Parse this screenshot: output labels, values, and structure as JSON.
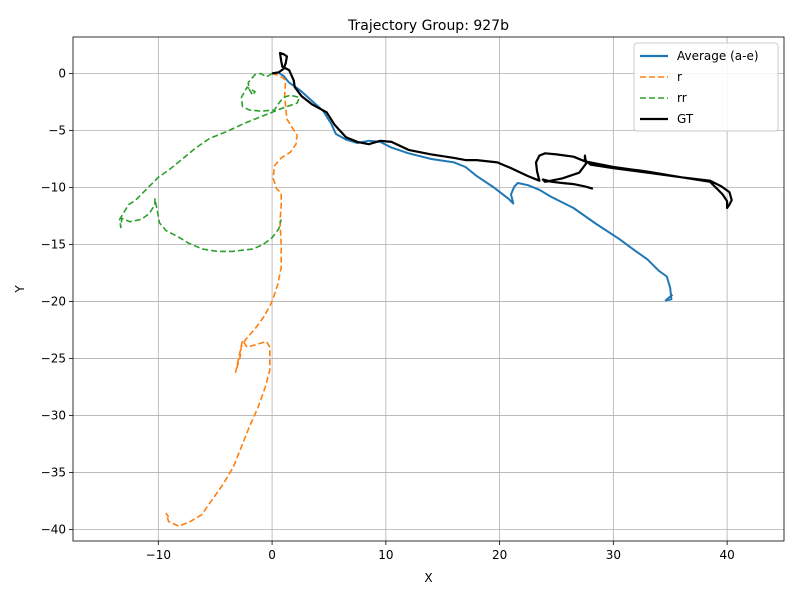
{
  "chart_data": {
    "type": "line",
    "title": "Trajectory Group: 927b",
    "xlabel": "X",
    "ylabel": "Y",
    "xlim": [
      -17.5,
      45
    ],
    "ylim": [
      -41,
      3.2
    ],
    "xticks": [
      -10,
      0,
      10,
      20,
      30,
      40
    ],
    "yticks": [
      0,
      -5,
      -10,
      -15,
      -20,
      -25,
      -30,
      -35,
      -40
    ],
    "grid": true,
    "legend_position": "top-right",
    "series": [
      {
        "name": "Average (a-e)",
        "color": "#1f77b4",
        "style": "solid",
        "points": [
          [
            0,
            0
          ],
          [
            0.5,
            0.1
          ],
          [
            1,
            -0.2
          ],
          [
            1.5,
            -0.8
          ],
          [
            2.5,
            -1.5
          ],
          [
            3.5,
            -2.4
          ],
          [
            4.5,
            -3.3
          ],
          [
            5.2,
            -4.4
          ],
          [
            5.6,
            -5.3
          ],
          [
            6.5,
            -5.8
          ],
          [
            7.5,
            -6.1
          ],
          [
            8.5,
            -5.9
          ],
          [
            9.5,
            -6.0
          ],
          [
            10.5,
            -6.5
          ],
          [
            12,
            -7
          ],
          [
            14,
            -7.5
          ],
          [
            16,
            -7.8
          ],
          [
            17,
            -8.2
          ],
          [
            18,
            -9
          ],
          [
            19.5,
            -10
          ],
          [
            20.8,
            -11
          ],
          [
            21.2,
            -11.4
          ],
          [
            21,
            -10.6
          ],
          [
            21.3,
            -9.9
          ],
          [
            21.6,
            -9.6
          ],
          [
            22.5,
            -9.8
          ],
          [
            23.5,
            -10.2
          ],
          [
            24.5,
            -10.8
          ],
          [
            26.5,
            -11.8
          ],
          [
            28.5,
            -13.2
          ],
          [
            30.5,
            -14.5
          ],
          [
            32,
            -15.6
          ],
          [
            33,
            -16.3
          ],
          [
            34,
            -17.3
          ],
          [
            34.7,
            -17.8
          ],
          [
            35,
            -18.8
          ],
          [
            35.1,
            -19.8
          ],
          [
            34.6,
            -19.9
          ],
          [
            35.2,
            -19.4
          ]
        ]
      },
      {
        "name": "r",
        "color": "#ff7f0e",
        "style": "dashed",
        "points": [
          [
            0,
            0
          ],
          [
            0.7,
            -0.2
          ],
          [
            1.2,
            -0.6
          ],
          [
            1.1,
            -2
          ],
          [
            1.3,
            -4
          ],
          [
            1.8,
            -4.8
          ],
          [
            2.2,
            -5.4
          ],
          [
            2.1,
            -6.2
          ],
          [
            1.6,
            -6.9
          ],
          [
            0.8,
            -7.4
          ],
          [
            0.2,
            -8.1
          ],
          [
            0.1,
            -9.2
          ],
          [
            0.4,
            -10.1
          ],
          [
            0.8,
            -10.5
          ],
          [
            0.8,
            -11.5
          ],
          [
            0.7,
            -13
          ],
          [
            0.8,
            -15
          ],
          [
            0.8,
            -17
          ],
          [
            0.5,
            -18.5
          ],
          [
            0,
            -20
          ],
          [
            -0.7,
            -21.3
          ],
          [
            -1.5,
            -22.4
          ],
          [
            -2.3,
            -23.3
          ],
          [
            -2.7,
            -23.9
          ],
          [
            -2.8,
            -24.8
          ],
          [
            -3.2,
            -26.2
          ],
          [
            -2.9,
            -24.8
          ],
          [
            -2.6,
            -23.4
          ],
          [
            -2.2,
            -24
          ],
          [
            -1.5,
            -23.8
          ],
          [
            -0.5,
            -23.5
          ],
          [
            -0.2,
            -24
          ],
          [
            -0.2,
            -26
          ],
          [
            -0.6,
            -27.5
          ],
          [
            -1.2,
            -29.2
          ],
          [
            -2,
            -31
          ],
          [
            -2.8,
            -33
          ],
          [
            -3.4,
            -34.5
          ],
          [
            -4.3,
            -36
          ],
          [
            -5.2,
            -37.3
          ],
          [
            -6.2,
            -38.7
          ],
          [
            -7.2,
            -39.3
          ],
          [
            -8.2,
            -39.7
          ],
          [
            -9.1,
            -39.3
          ],
          [
            -9.3,
            -38.6
          ],
          [
            -9.1,
            -38.9
          ]
        ]
      },
      {
        "name": "rr",
        "color": "#2ca02c",
        "style": "dashed",
        "points": [
          [
            0,
            0
          ],
          [
            -0.5,
            -0.3
          ],
          [
            -1,
            0
          ],
          [
            -1.5,
            -0.1
          ],
          [
            -2.1,
            -0.8
          ],
          [
            -2,
            -1.4
          ],
          [
            -1.7,
            -1.9
          ],
          [
            -1.5,
            -1.6
          ],
          [
            -2.2,
            -1.2
          ],
          [
            -2.7,
            -2.1
          ],
          [
            -2.6,
            -2.9
          ],
          [
            -2,
            -3.2
          ],
          [
            -1,
            -3.3
          ],
          [
            0.2,
            -3.2
          ],
          [
            0.6,
            -2.6
          ],
          [
            1,
            -2.1
          ],
          [
            1.6,
            -1.9
          ],
          [
            2.4,
            -2.1
          ],
          [
            2.2,
            -2.6
          ],
          [
            1,
            -3
          ],
          [
            -0.5,
            -3.6
          ],
          [
            -2.5,
            -4.4
          ],
          [
            -4,
            -5.1
          ],
          [
            -5.5,
            -5.7
          ],
          [
            -6.8,
            -6.6
          ],
          [
            -8,
            -7.6
          ],
          [
            -9,
            -8.4
          ],
          [
            -10,
            -9.1
          ],
          [
            -10.8,
            -9.9
          ],
          [
            -11.5,
            -10.6
          ],
          [
            -12,
            -11.1
          ],
          [
            -12.6,
            -11.5
          ],
          [
            -13.1,
            -12.3
          ],
          [
            -13.4,
            -12.8
          ],
          [
            -13.3,
            -13.5
          ],
          [
            -13.2,
            -12.7
          ],
          [
            -12.5,
            -13
          ],
          [
            -11.5,
            -12.8
          ],
          [
            -10.8,
            -12.3
          ],
          [
            -10.3,
            -11.5
          ],
          [
            -10.3,
            -11
          ],
          [
            -10.1,
            -12
          ],
          [
            -9.9,
            -13.1
          ],
          [
            -9.3,
            -13.8
          ],
          [
            -8.3,
            -14.3
          ],
          [
            -7.3,
            -14.9
          ],
          [
            -6.1,
            -15.4
          ],
          [
            -4.8,
            -15.6
          ],
          [
            -3.5,
            -15.6
          ],
          [
            -2.6,
            -15.5
          ],
          [
            -1.7,
            -15.4
          ],
          [
            -0.8,
            -15
          ],
          [
            0,
            -14.4
          ],
          [
            0.6,
            -13.6
          ],
          [
            0.8,
            -12.8
          ]
        ]
      },
      {
        "name": "GT",
        "color": "#000000",
        "style": "solid",
        "points": [
          [
            0,
            0
          ],
          [
            0.6,
            0.1
          ],
          [
            1,
            0.4
          ],
          [
            1.2,
            0.9
          ],
          [
            1.3,
            1.5
          ],
          [
            1,
            1.7
          ],
          [
            0.7,
            1.8
          ],
          [
            0.8,
            1.1
          ],
          [
            0.9,
            0.6
          ],
          [
            1.5,
            0.3
          ],
          [
            1.9,
            -0.6
          ],
          [
            2,
            -1.2
          ],
          [
            2.6,
            -2
          ],
          [
            3.5,
            -2.7
          ],
          [
            4.8,
            -3.4
          ],
          [
            5.5,
            -4.5
          ],
          [
            6.5,
            -5.6
          ],
          [
            7.5,
            -6
          ],
          [
            8.5,
            -6.2
          ],
          [
            9.5,
            -5.9
          ],
          [
            10.5,
            -6
          ],
          [
            12,
            -6.7
          ],
          [
            14,
            -7.1
          ],
          [
            16,
            -7.4
          ],
          [
            17,
            -7.6
          ],
          [
            18,
            -7.6
          ],
          [
            19.8,
            -7.8
          ],
          [
            21,
            -8.3
          ],
          [
            22.5,
            -9
          ],
          [
            23.5,
            -9.4
          ],
          [
            23.3,
            -8.6
          ],
          [
            23.2,
            -7.8
          ],
          [
            23.5,
            -7.2
          ],
          [
            24,
            -7
          ],
          [
            25,
            -7.1
          ],
          [
            26.5,
            -7.3
          ],
          [
            27.5,
            -7.7
          ],
          [
            30,
            -8.2
          ],
          [
            33,
            -8.6
          ],
          [
            36,
            -9.1
          ],
          [
            38.5,
            -9.4
          ],
          [
            39.5,
            -9.9
          ],
          [
            40.2,
            -10.4
          ],
          [
            40.4,
            -11.1
          ],
          [
            40.2,
            -11.5
          ],
          [
            40,
            -11.8
          ],
          [
            40,
            -11.2
          ],
          [
            39.6,
            -10.6
          ],
          [
            38.5,
            -9.5
          ],
          [
            36,
            -9.1
          ],
          [
            33,
            -8.7
          ],
          [
            30,
            -8.3
          ],
          [
            28,
            -8
          ],
          [
            27.5,
            -7.6
          ],
          [
            27.5,
            -7.2
          ],
          [
            27.6,
            -7.9
          ],
          [
            27,
            -8.7
          ],
          [
            25.5,
            -9.2
          ],
          [
            24,
            -9.5
          ],
          [
            23.8,
            -9.3
          ],
          [
            24.6,
            -9.5
          ],
          [
            25.5,
            -9.6
          ],
          [
            26.5,
            -9.7
          ],
          [
            27.5,
            -9.9
          ],
          [
            28.2,
            -10.1
          ]
        ]
      }
    ]
  }
}
